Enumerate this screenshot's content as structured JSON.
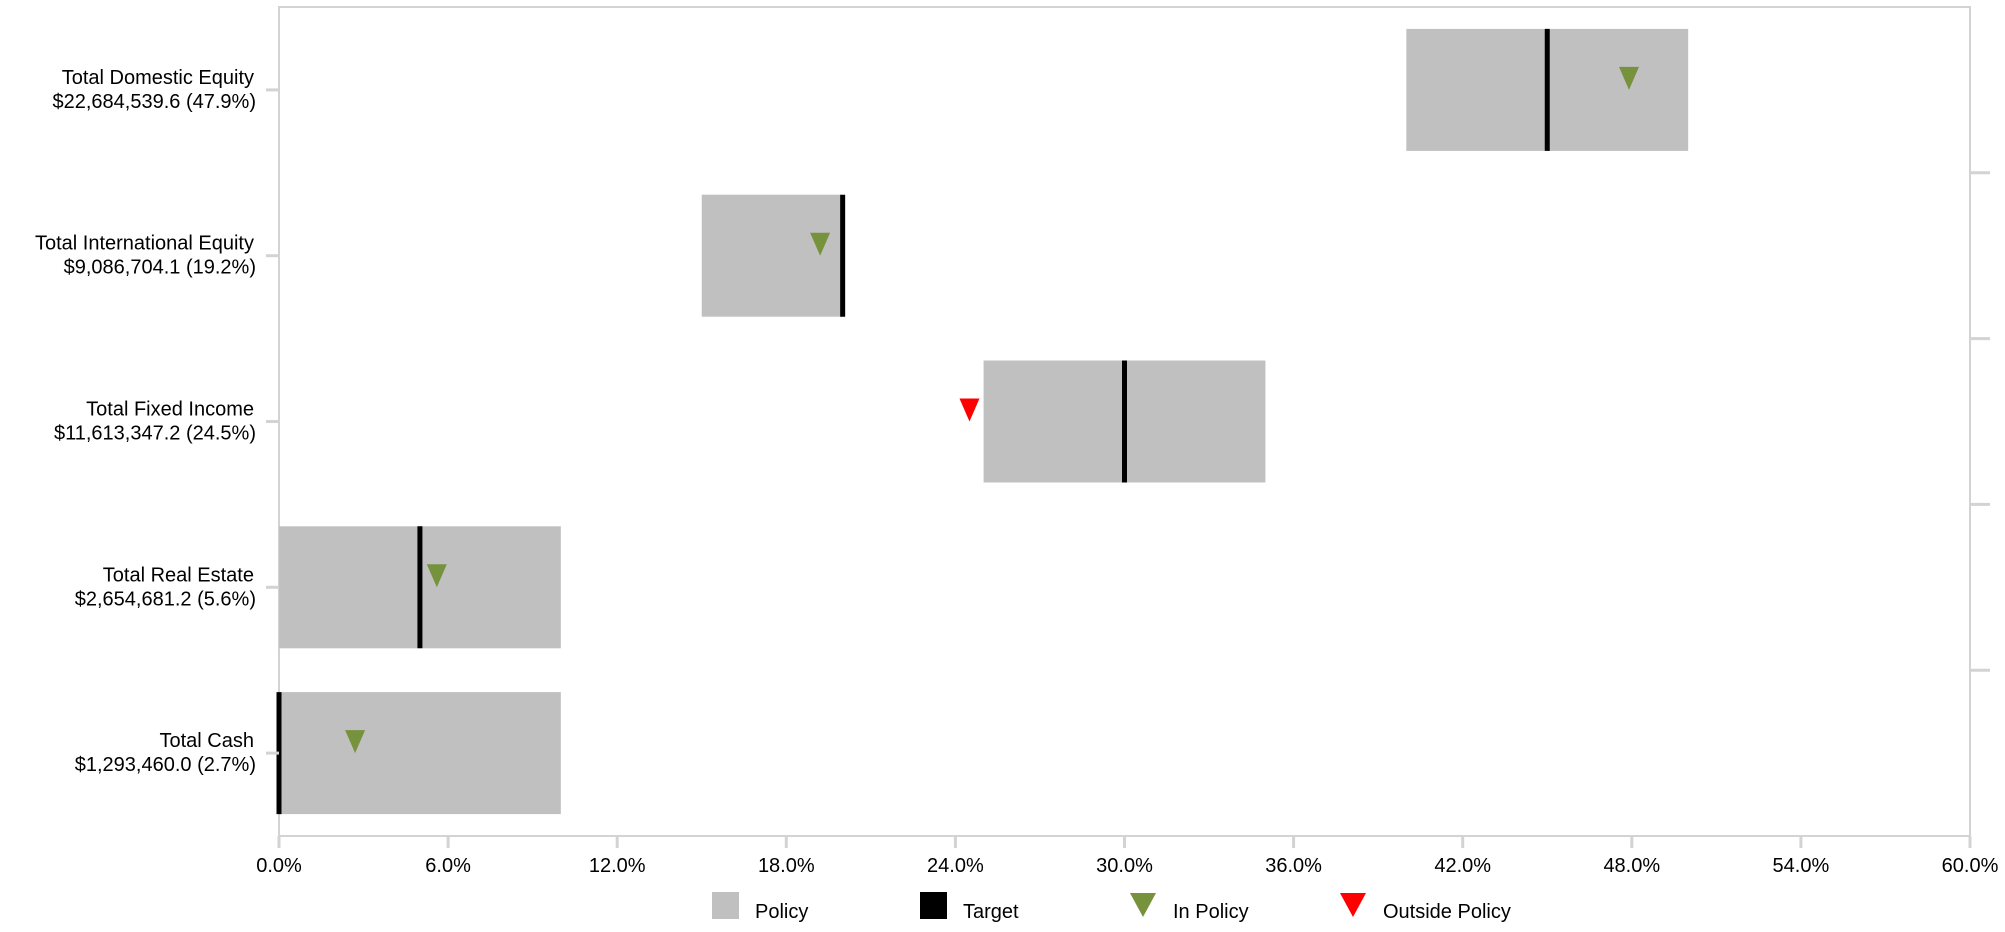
{
  "chart_data": {
    "type": "bar",
    "subtype": "bullet-allocation",
    "orientation": "horizontal",
    "categories": [
      {
        "name": "Total Domestic Equity",
        "value_label": "$22,684,539.6 (47.9%)",
        "market_value": 22684539.6,
        "actual": 47.9,
        "policy_min": 40.0,
        "policy_max": 50.0,
        "target": 45.0,
        "status": "in"
      },
      {
        "name": "Total International Equity",
        "value_label": "$9,086,704.1 (19.2%)",
        "market_value": 9086704.1,
        "actual": 19.2,
        "policy_min": 15.0,
        "policy_max": 20.0,
        "target": 20.0,
        "status": "in"
      },
      {
        "name": "Total Fixed Income",
        "value_label": "$11,613,347.2 (24.5%)",
        "market_value": 11613347.2,
        "actual": 24.5,
        "policy_min": 25.0,
        "policy_max": 35.0,
        "target": 30.0,
        "status": "out"
      },
      {
        "name": "Total Real Estate",
        "value_label": "$2,654,681.2 (5.6%)",
        "market_value": 2654681.2,
        "actual": 5.6,
        "policy_min": 0.0,
        "policy_max": 10.0,
        "target": 5.0,
        "status": "in"
      },
      {
        "name": "Total Cash",
        "value_label": "$1,293,460.0 (2.7%)",
        "market_value": 1293460.0,
        "actual": 2.7,
        "policy_min": 0.0,
        "policy_max": 10.0,
        "target": 0.0,
        "status": "in"
      }
    ],
    "xlim": [
      0,
      60
    ],
    "x_ticks": [
      0,
      6,
      12,
      18,
      24,
      30,
      36,
      42,
      48,
      54,
      60
    ],
    "x_tick_labels": [
      "0.0%",
      "6.0%",
      "12.0%",
      "18.0%",
      "24.0%",
      "30.0%",
      "36.0%",
      "42.0%",
      "48.0%",
      "54.0%",
      "60.0%"
    ],
    "grid": false,
    "legend_position": "bottom",
    "legend": [
      {
        "key": "policy",
        "label": "Policy",
        "color": "#c0c0c0",
        "shape": "square"
      },
      {
        "key": "target",
        "label": "Target",
        "color": "#000000",
        "shape": "square"
      },
      {
        "key": "in",
        "label": "In Policy",
        "color": "#76923c",
        "shape": "triangle-down"
      },
      {
        "key": "out",
        "label": "Outside Policy",
        "color": "#ff0000",
        "shape": "triangle-down"
      }
    ],
    "colors": {
      "policy": "#c0c0c0",
      "target": "#000000",
      "in_policy": "#76923c",
      "outside_policy": "#ff0000",
      "frame": "#d3d3d3"
    }
  }
}
